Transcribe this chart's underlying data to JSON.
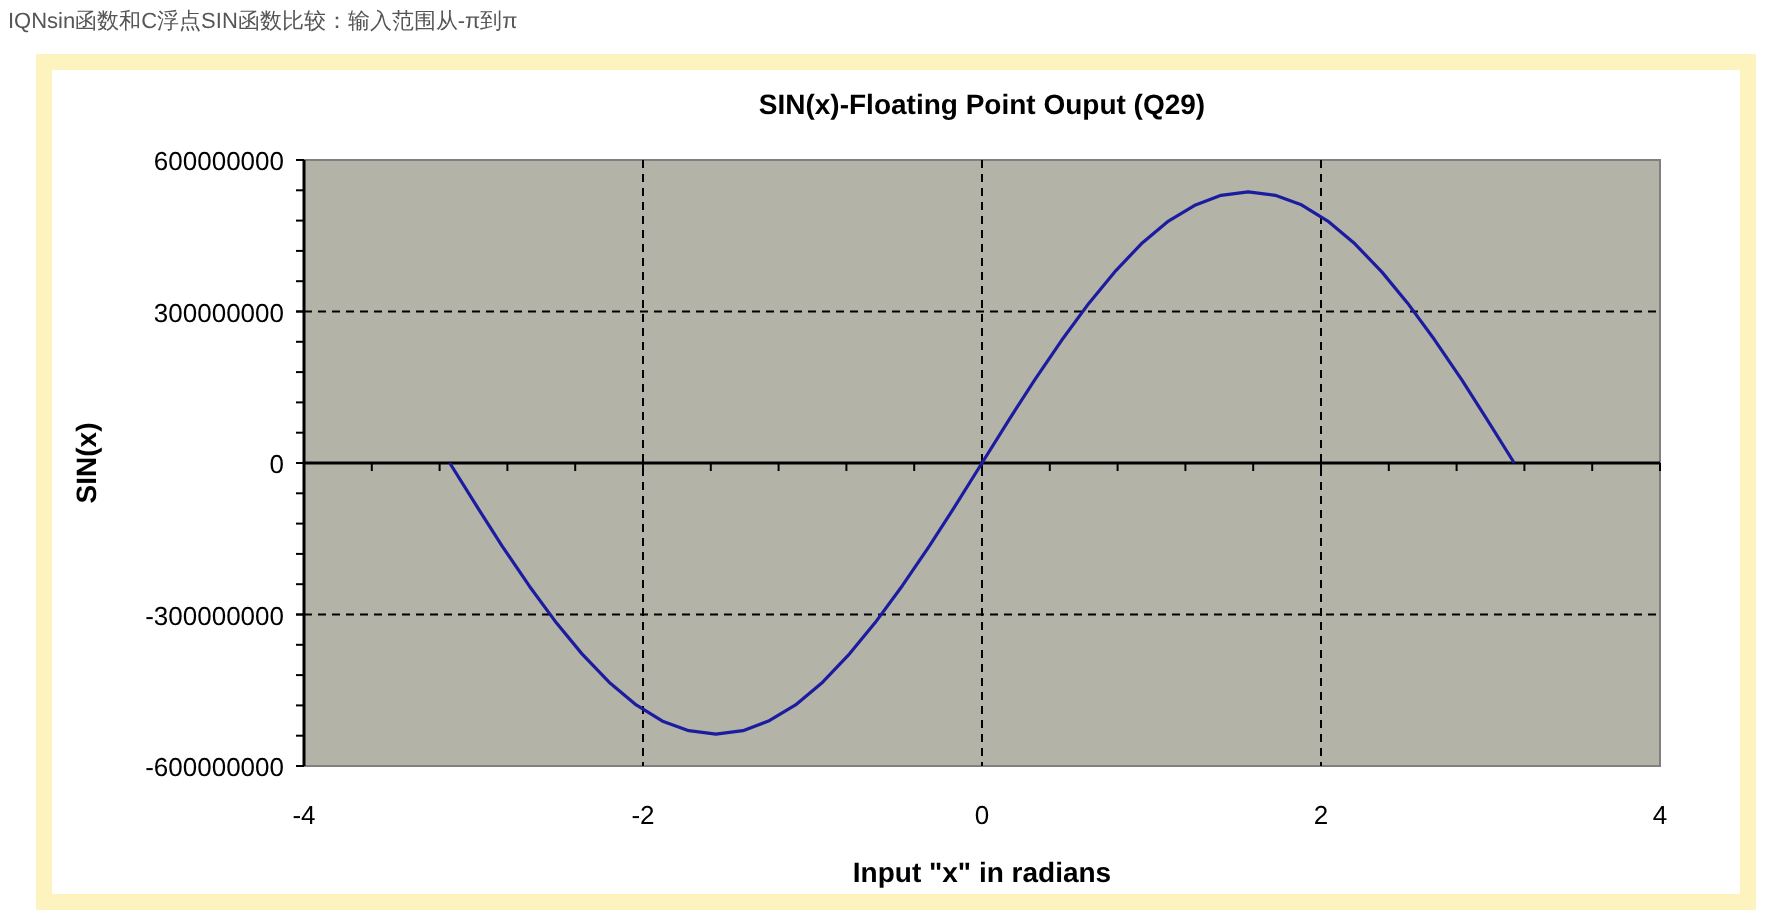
{
  "chart_data": {
    "type": "line",
    "title": "SIN(x)-Floating Point Ouput (Q29)",
    "xlabel": "Input \"x\" in radians",
    "ylabel": "SIN(x)",
    "annotations": [
      "IQNsin函数和C浮点SIN函数比较：输入范围从-π到π"
    ],
    "xlim": [
      -4,
      4
    ],
    "xticks": [
      -4,
      -2,
      0,
      2,
      4
    ],
    "ylim": [
      -600000000,
      600000000
    ],
    "yticks": [
      -600000000,
      -300000000,
      0,
      300000000,
      600000000
    ],
    "grid": true,
    "series": [
      {
        "color": "#1c1ca0",
        "x": [
          -3.14,
          -2.98,
          -2.83,
          -2.67,
          -2.51,
          -2.36,
          -2.2,
          -2.04,
          -1.88,
          -1.73,
          -1.57,
          -1.41,
          -1.26,
          -1.1,
          -0.94,
          -0.79,
          -0.63,
          -0.47,
          -0.31,
          -0.16,
          0,
          0.16,
          0.31,
          0.47,
          0.63,
          0.79,
          0.94,
          1.1,
          1.26,
          1.41,
          1.57,
          1.73,
          1.88,
          2.04,
          2.2,
          2.36,
          2.51,
          2.67,
          2.83,
          2.98,
          3.14
        ],
        "values": [
          0,
          -86000000,
          -165000000,
          -244000000,
          -317000000,
          -378000000,
          -434000000,
          -479000000,
          -512000000,
          -530000000,
          -537000000,
          -530000000,
          -511000000,
          -479000000,
          -434000000,
          -381000000,
          -316000000,
          -243000000,
          -164000000,
          -86000000,
          0,
          86000000,
          164000000,
          243000000,
          316000000,
          381000000,
          434000000,
          479000000,
          511000000,
          530000000,
          537000000,
          530000000,
          512000000,
          479000000,
          434000000,
          378000000,
          317000000,
          244000000,
          165000000,
          86000000,
          0
        ]
      }
    ]
  }
}
